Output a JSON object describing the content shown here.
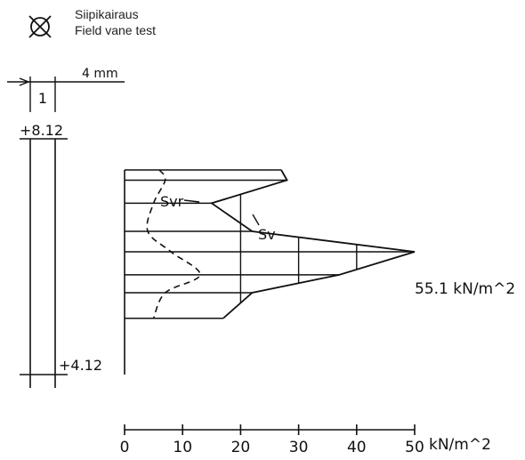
{
  "legend": {
    "icon": "field-vane-symbol-icon",
    "label_fi": "Siipikairaus",
    "label_en": "Field vane test"
  },
  "column": {
    "width_label": "4 mm",
    "column_number": "1",
    "top_level": "+8.12",
    "bottom_level": "+4.12"
  },
  "chart_data": {
    "type": "line",
    "x_ticks": [
      "0",
      "10",
      "20",
      "30",
      "40",
      "50"
    ],
    "x_unit": "kN/m^2",
    "xlim": [
      0,
      50
    ],
    "depth_range": [
      8.12,
      4.12
    ],
    "series": [
      {
        "name": "Sv",
        "style": "solid",
        "points": [
          [
            27,
            8.12
          ],
          [
            28,
            7.92
          ],
          [
            15,
            7.47
          ],
          [
            22,
            6.92
          ],
          [
            50,
            6.52
          ],
          [
            37,
            6.07
          ],
          [
            22,
            5.72
          ],
          [
            17,
            5.22
          ]
        ]
      },
      {
        "name": "Svr",
        "style": "dashed",
        "points": [
          [
            6,
            8.12
          ],
          [
            7,
            7.92
          ],
          [
            5,
            7.47
          ],
          [
            4,
            6.92
          ],
          [
            8,
            6.52
          ],
          [
            13,
            6.07
          ],
          [
            7,
            5.72
          ],
          [
            5,
            5.22
          ]
        ]
      }
    ],
    "peak_label": "55.1 kN/m^2"
  }
}
